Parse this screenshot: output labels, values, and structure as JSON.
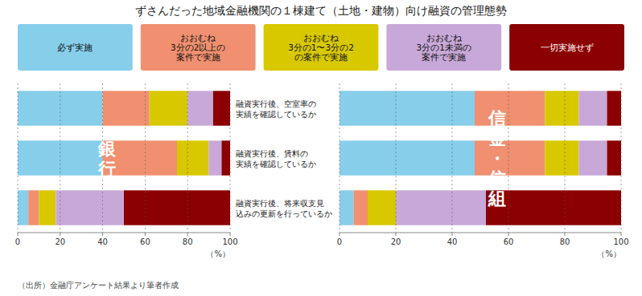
{
  "chart_data": [
    {
      "type": "bar",
      "orientation": "horizontal",
      "stacked": true,
      "grid": true,
      "title": "ずさんだった地域金融機関の１棟建て（土地・建物）向け融資の管理態勢",
      "annotations": [
        "銀\n行"
      ],
      "xlabel": "（%）",
      "source": "（出所）金融庁アンケート結果より筆者作成",
      "categories": [
        "融資実行後、空室率の\n実績を確認しているか",
        "融資実行後、賃料の\n実績を確認しているか",
        "融資実行後、将来収支見\n込みの更新を行っているか"
      ],
      "xlim": [
        0,
        100
      ],
      "xticks": [
        0,
        20,
        40,
        60,
        80,
        100
      ],
      "series": [
        {
          "name": "必ず実施",
          "color": "#87CEEB",
          "values": [
            40,
            40,
            5
          ]
        },
        {
          "name": "おおむね\n3分の2以上の\n案件で実施",
          "color": "#F09070",
          "values": [
            22,
            35,
            5
          ]
        },
        {
          "name": "おおむね\n3分の1〜3分の2\nの案件で実施",
          "color": "#D8C800",
          "values": [
            18,
            15,
            8
          ]
        },
        {
          "name": "おおむね\n3分の1未満の\n案件で実施",
          "color": "#C8A8D8",
          "values": [
            12,
            6,
            32
          ]
        },
        {
          "name": "一切実施せず",
          "color": "#8B0000",
          "values": [
            8,
            4,
            50
          ]
        }
      ]
    },
    {
      "type": "bar",
      "orientation": "horizontal",
      "stacked": true,
      "grid": true,
      "annotations": [
        "信\n金\n・\n信\n組"
      ],
      "xlabel": "（%）",
      "xlim": [
        0,
        100
      ],
      "xticks": [
        0,
        20,
        40,
        60,
        80,
        100
      ],
      "series": [
        {
          "color": "#87CEEB",
          "values": [
            48,
            48,
            5
          ]
        },
        {
          "color": "#F09070",
          "values": [
            25,
            25,
            5
          ]
        },
        {
          "color": "#D8C800",
          "values": [
            12,
            12,
            10
          ]
        },
        {
          "color": "#C8A8D8",
          "values": [
            10,
            10,
            32
          ]
        },
        {
          "color": "#8B0000",
          "values": [
            5,
            5,
            48
          ]
        }
      ]
    }
  ]
}
